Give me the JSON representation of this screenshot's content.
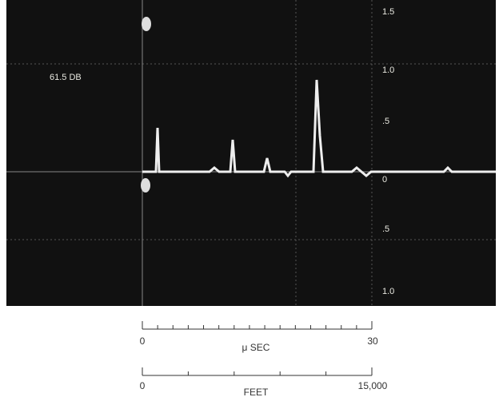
{
  "screen": {
    "db_label": "61.5 DB",
    "amplitude_labels": [
      "1.5",
      "1.0",
      ".5",
      "0",
      ".5",
      "1.0"
    ]
  },
  "scales": [
    {
      "start": "0",
      "unit": "μ SEC",
      "end": "30"
    },
    {
      "start": "0",
      "unit": "FEET",
      "end": "15,000"
    }
  ]
}
